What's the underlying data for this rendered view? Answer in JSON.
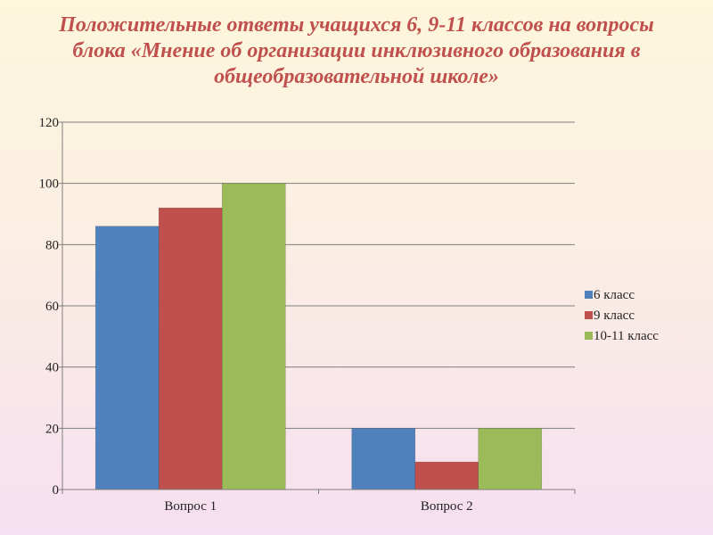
{
  "slide": {
    "title_lines": [
      "Положительные ответы учащихся 6, 9-11 классов на вопросы",
      "блока «Мнение об организации инклюзивного образования в",
      "общеобразовательной школе»"
    ]
  },
  "chart_data": {
    "type": "bar",
    "title": "",
    "xlabel": "",
    "ylabel": "",
    "categories": [
      "Вопрос 1",
      "Вопрос 2"
    ],
    "series": [
      {
        "name": "6 класс",
        "values": [
          86,
          20
        ],
        "color": "#4f81bd"
      },
      {
        "name": "9 класс",
        "values": [
          92,
          9
        ],
        "color": "#c0504d"
      },
      {
        "name": "10-11 класс",
        "values": [
          100,
          20
        ],
        "color": "#9bbb59"
      }
    ],
    "ylim": [
      0,
      120
    ],
    "yticks": [
      "0",
      "20",
      "40",
      "60",
      "80",
      "100",
      "120"
    ],
    "grid": true,
    "legend_position": "right"
  }
}
